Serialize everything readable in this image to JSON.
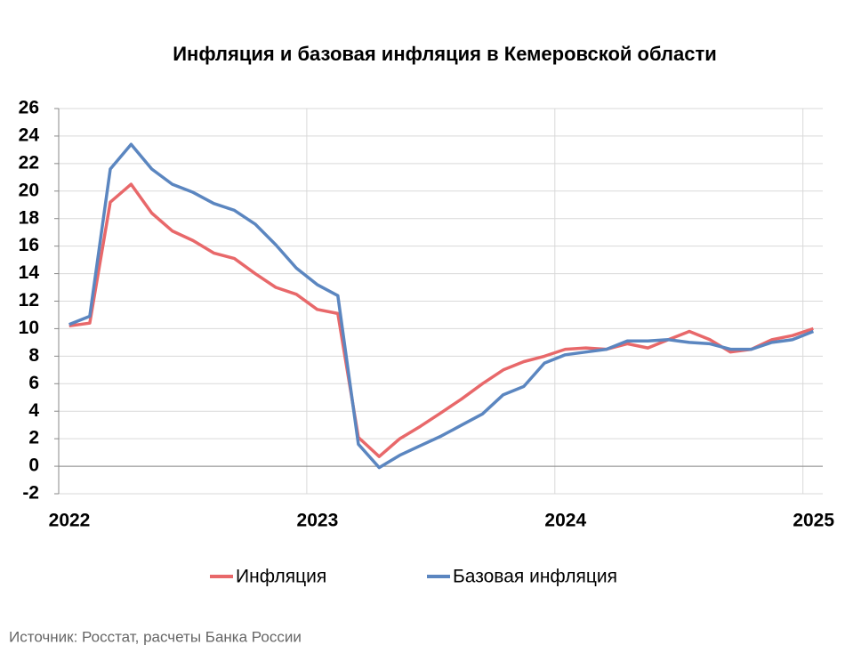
{
  "chart_data": {
    "type": "line",
    "title": "Инфляция и базовая инфляция в Кемеровской области",
    "x": [
      2022.042,
      2022.125,
      2022.208,
      2022.292,
      2022.375,
      2022.458,
      2022.542,
      2022.625,
      2022.708,
      2022.792,
      2022.875,
      2022.958,
      2023.042,
      2023.125,
      2023.208,
      2023.292,
      2023.375,
      2023.458,
      2023.542,
      2023.625,
      2023.708,
      2023.792,
      2023.875,
      2023.958,
      2024.042,
      2024.125,
      2024.208,
      2024.292,
      2024.375,
      2024.458,
      2024.542,
      2024.625,
      2024.708,
      2024.792,
      2024.875,
      2024.958,
      2025.042
    ],
    "series": [
      {
        "name": "Инфляция",
        "color": "#e8686a",
        "values": [
          10.2,
          10.4,
          19.2,
          20.5,
          18.4,
          17.1,
          16.4,
          15.5,
          15.1,
          14.0,
          13.0,
          12.5,
          11.4,
          11.1,
          2.1,
          0.7,
          2.0,
          2.9,
          3.9,
          4.9,
          6.0,
          7.0,
          7.6,
          8.0,
          8.5,
          8.6,
          8.5,
          8.9,
          8.6,
          9.2,
          9.8,
          9.2,
          8.3,
          8.5,
          9.2,
          9.5,
          10.0
        ]
      },
      {
        "name": "Базовая инфляция",
        "color": "#5b86c0",
        "values": [
          10.3,
          10.9,
          21.6,
          23.4,
          21.6,
          20.5,
          19.9,
          19.1,
          18.6,
          17.6,
          16.1,
          14.4,
          13.2,
          12.4,
          1.6,
          -0.1,
          0.8,
          1.5,
          2.2,
          3.0,
          3.8,
          5.2,
          5.8,
          7.5,
          8.1,
          8.3,
          8.5,
          9.1,
          9.1,
          9.2,
          9.0,
          8.9,
          8.5,
          8.5,
          9.0,
          9.2,
          9.8
        ]
      }
    ],
    "xlim": [
      2022,
      2025.08
    ],
    "xticks": [
      2022,
      2023,
      2024,
      2025
    ],
    "ylim": [
      -2,
      26
    ],
    "yticks": [
      -2,
      0,
      2,
      4,
      6,
      8,
      10,
      12,
      14,
      16,
      18,
      20,
      22,
      24,
      26
    ],
    "grid": true,
    "legend": "bottom",
    "source": "Источник: Росстат, расчеты Банка России"
  }
}
